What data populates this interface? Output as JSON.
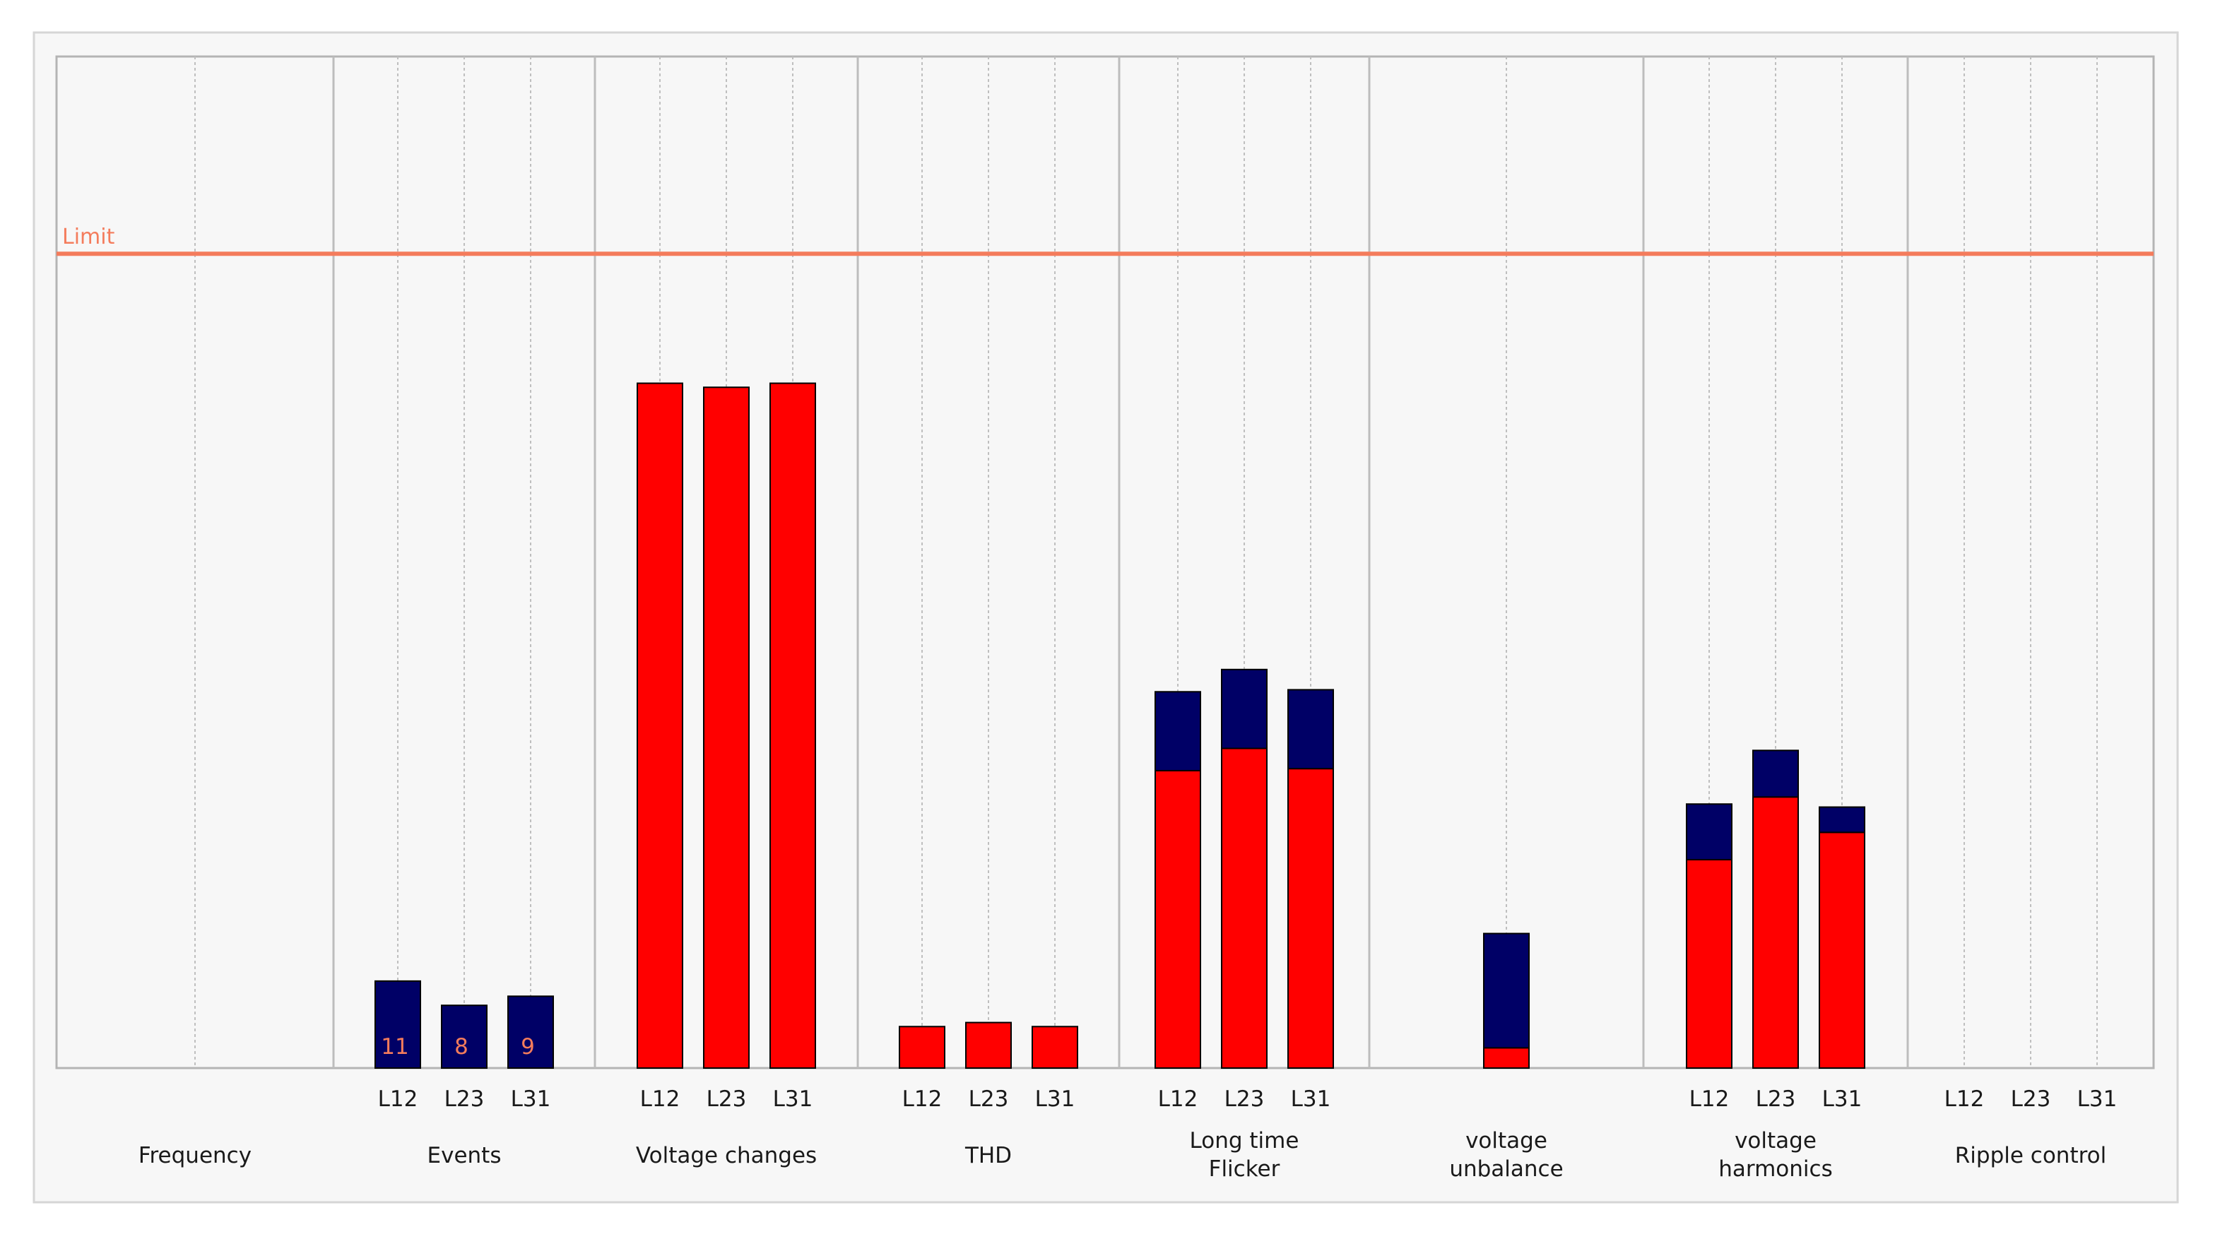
{
  "chart_data": {
    "type": "bar",
    "stacked": true,
    "title": "",
    "xlabel": "",
    "ylabel": "",
    "ylim": [
      0,
      100
    ],
    "limit": {
      "label": "Limit",
      "value": 80.5,
      "color": "#f47c5c"
    },
    "grid": "dotted vertical",
    "colors": {
      "red": "#ff0000",
      "blue": "#000066"
    },
    "groups": [
      {
        "label": "Frequency",
        "phases": []
      },
      {
        "label": "Events",
        "phases": [
          {
            "phase": "L12",
            "red": 0,
            "blue": 8.6,
            "label": "11"
          },
          {
            "phase": "L23",
            "red": 0,
            "blue": 6.2,
            "label": "8"
          },
          {
            "phase": "L31",
            "red": 0,
            "blue": 7.1,
            "label": "9"
          }
        ]
      },
      {
        "label": "Voltage changes",
        "phases": [
          {
            "phase": "L12",
            "red": 67.7,
            "blue": 0
          },
          {
            "phase": "L23",
            "red": 67.3,
            "blue": 0
          },
          {
            "phase": "L31",
            "red": 67.7,
            "blue": 0
          }
        ]
      },
      {
        "label": "THD",
        "phases": [
          {
            "phase": "L12",
            "red": 4.1,
            "blue": 0
          },
          {
            "phase": "L23",
            "red": 4.5,
            "blue": 0
          },
          {
            "phase": "L31",
            "red": 4.1,
            "blue": 0
          }
        ]
      },
      {
        "label": [
          "Long time",
          "Flicker"
        ],
        "phases": [
          {
            "phase": "L12",
            "red": 29.4,
            "blue": 7.8
          },
          {
            "phase": "L23",
            "red": 31.6,
            "blue": 7.8
          },
          {
            "phase": "L31",
            "red": 29.6,
            "blue": 7.8
          }
        ]
      },
      {
        "label": [
          "voltage",
          "unbalance"
        ],
        "phases": [
          {
            "phase": "",
            "red": 2.0,
            "blue": 11.3
          }
        ]
      },
      {
        "label": [
          "voltage",
          "harmonics"
        ],
        "phases": [
          {
            "phase": "L12",
            "red": 20.6,
            "blue": 5.5
          },
          {
            "phase": "L23",
            "red": 26.8,
            "blue": 4.6
          },
          {
            "phase": "L31",
            "red": 23.3,
            "blue": 2.5
          }
        ]
      },
      {
        "label": "Ripple control",
        "phases": [
          {
            "phase": "L12",
            "red": 0,
            "blue": 0
          },
          {
            "phase": "L23",
            "red": 0,
            "blue": 0
          },
          {
            "phase": "L31",
            "red": 0,
            "blue": 0
          }
        ]
      }
    ]
  }
}
